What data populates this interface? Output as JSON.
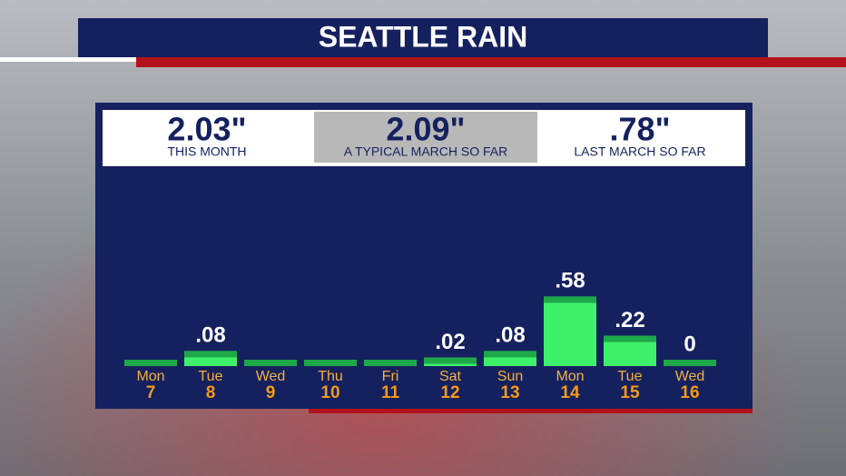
{
  "chart_data": {
    "type": "bar",
    "title": "SEATTLE RAIN",
    "stats": [
      {
        "value": "2.03\"",
        "label": "THIS MONTH"
      },
      {
        "value": "2.09\"",
        "label": "A TYPICAL MARCH SO FAR"
      },
      {
        "value": ".78\"",
        "label": "LAST MARCH SO FAR"
      }
    ],
    "categories": [
      "Mon",
      "Tue",
      "Wed",
      "Thu",
      "Fri",
      "Sat",
      "Sun",
      "Mon",
      "Tue",
      "Wed"
    ],
    "dates": [
      "7",
      "8",
      "9",
      "10",
      "11",
      "12",
      "13",
      "14",
      "15",
      "16"
    ],
    "values": [
      0,
      0.08,
      0,
      0,
      0,
      0.02,
      0.08,
      0.58,
      0.22,
      0
    ],
    "value_labels": [
      null,
      ".08",
      null,
      null,
      null,
      ".02",
      ".08",
      ".58",
      ".22",
      "0"
    ],
    "color": "#3ef06a",
    "cap_color": "#1fa84a"
  }
}
